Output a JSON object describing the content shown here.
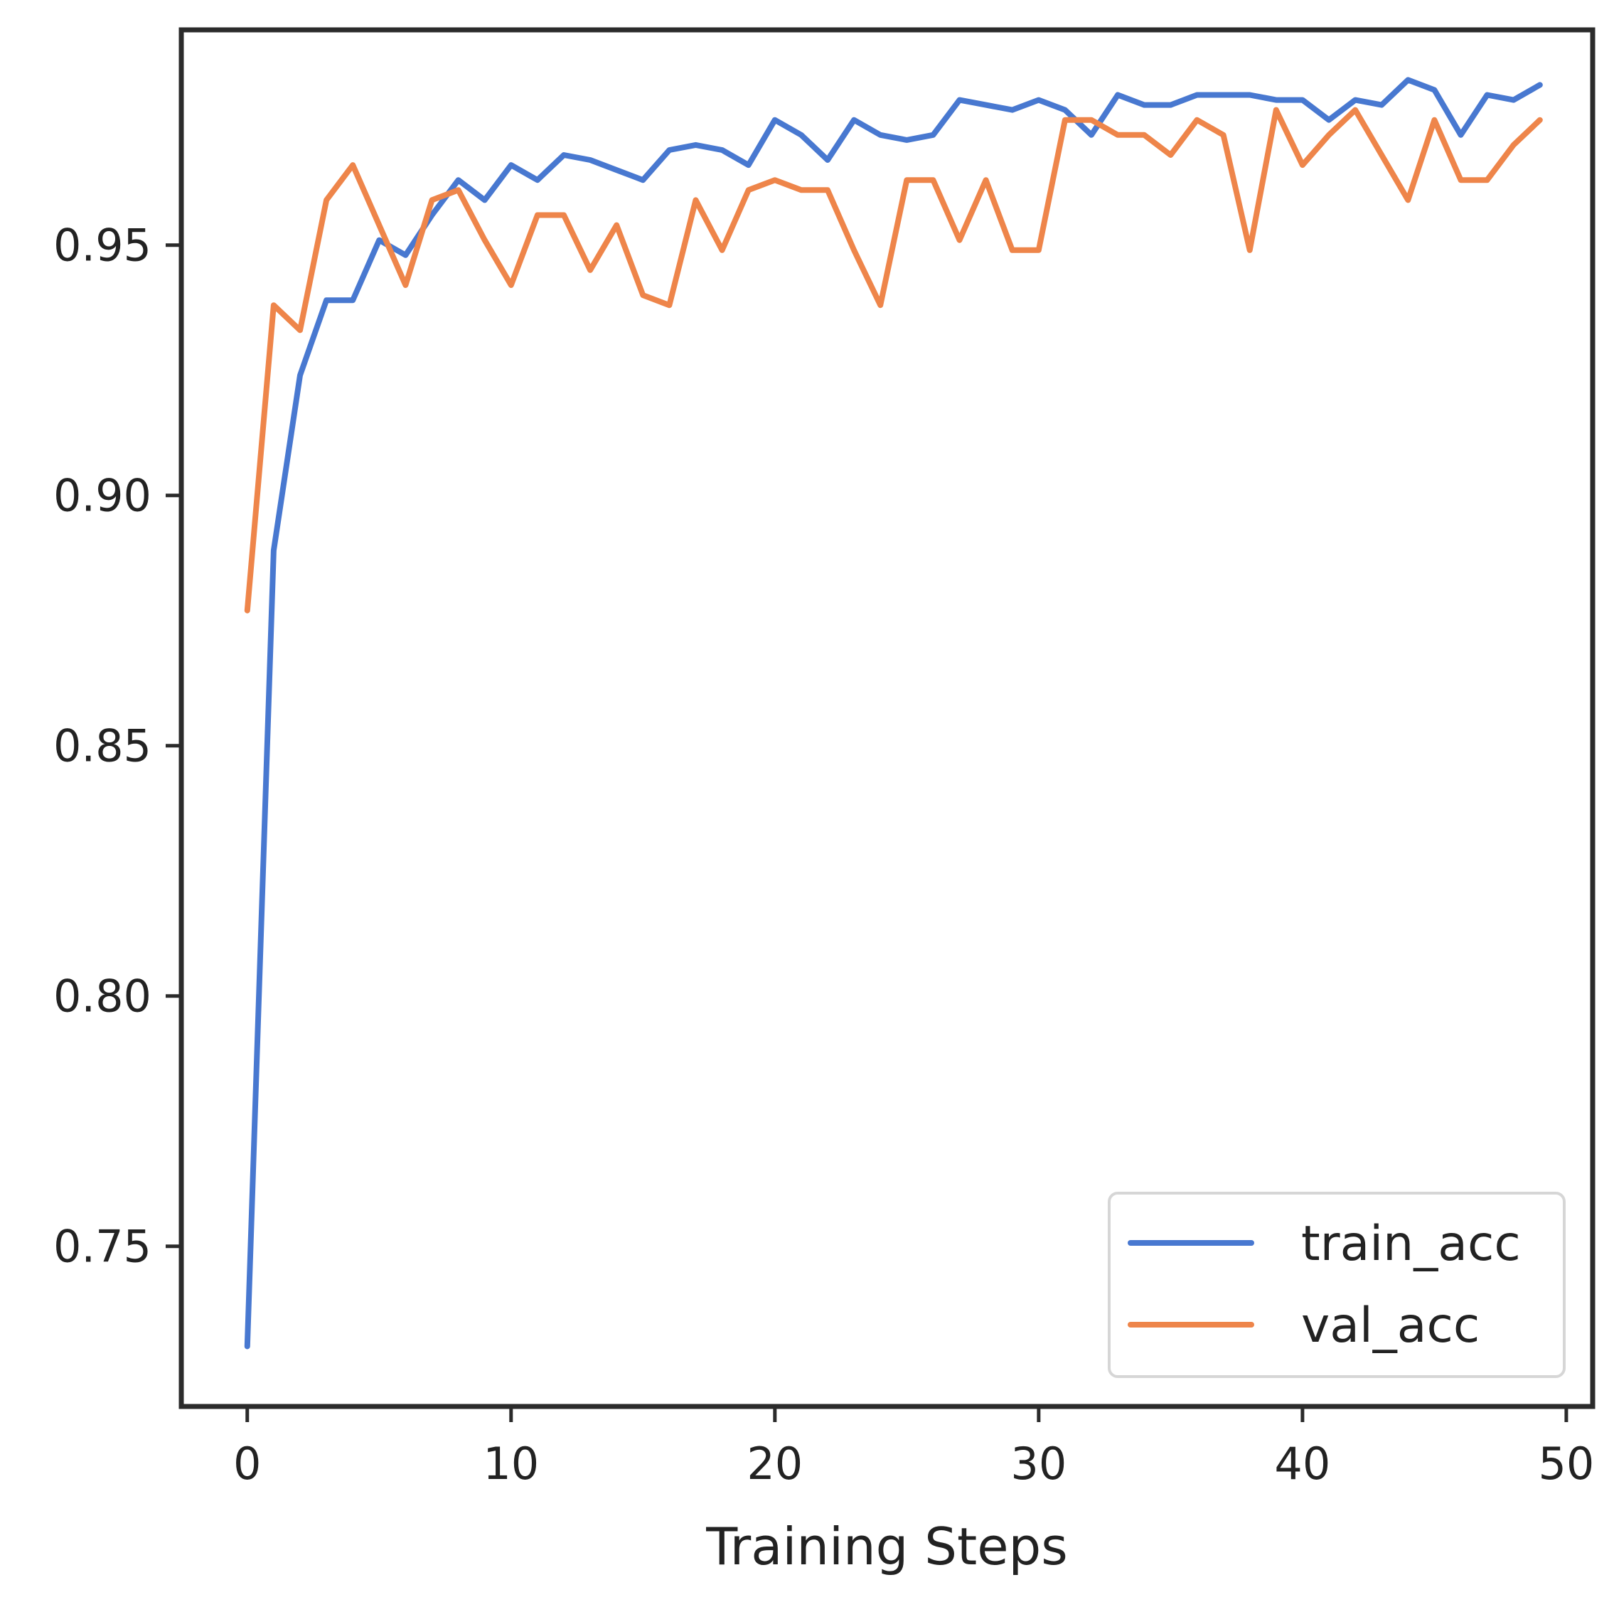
{
  "chart_data": {
    "type": "line",
    "title": "",
    "xlabel": "Training Steps",
    "ylabel": "",
    "xlim": [
      -2.5,
      51
    ],
    "ylim": [
      0.718,
      0.993
    ],
    "xticks": [
      0,
      10,
      20,
      30,
      40,
      50
    ],
    "xtick_labels": [
      "0",
      "10",
      "20",
      "30",
      "40",
      "50"
    ],
    "yticks": [
      0.75,
      0.8,
      0.85,
      0.9,
      0.95
    ],
    "ytick_labels": [
      "0.75",
      "0.80",
      "0.85",
      "0.90",
      "0.95"
    ],
    "grid": false,
    "legend_position": "lower-right",
    "x": [
      0,
      1,
      2,
      3,
      4,
      5,
      6,
      7,
      8,
      9,
      10,
      11,
      12,
      13,
      14,
      15,
      16,
      17,
      18,
      19,
      20,
      21,
      22,
      23,
      24,
      25,
      26,
      27,
      28,
      29,
      30,
      31,
      32,
      33,
      34,
      35,
      36,
      37,
      38,
      39,
      40,
      41,
      42,
      43,
      44,
      45,
      46,
      47,
      48,
      49
    ],
    "series": [
      {
        "name": "train_acc",
        "color": "#4878d0",
        "values": [
          0.73,
          0.889,
          0.924,
          0.939,
          0.939,
          0.951,
          0.948,
          0.956,
          0.963,
          0.959,
          0.966,
          0.963,
          0.968,
          0.967,
          0.965,
          0.963,
          0.969,
          0.97,
          0.969,
          0.966,
          0.975,
          0.972,
          0.967,
          0.975,
          0.972,
          0.971,
          0.972,
          0.979,
          0.978,
          0.977,
          0.979,
          0.977,
          0.972,
          0.98,
          0.978,
          0.978,
          0.98,
          0.98,
          0.98,
          0.979,
          0.979,
          0.975,
          0.979,
          0.978,
          0.983,
          0.981,
          0.972,
          0.98,
          0.979,
          0.982
        ]
      },
      {
        "name": "val_acc",
        "color": "#ee854a",
        "values": [
          0.877,
          0.938,
          0.933,
          0.959,
          0.966,
          0.954,
          0.942,
          0.959,
          0.961,
          0.951,
          0.942,
          0.956,
          0.956,
          0.945,
          0.954,
          0.94,
          0.938,
          0.959,
          0.949,
          0.961,
          0.963,
          0.961,
          0.961,
          0.949,
          0.938,
          0.963,
          0.963,
          0.951,
          0.963,
          0.949,
          0.949,
          0.975,
          0.975,
          0.972,
          0.972,
          0.968,
          0.975,
          0.972,
          0.949,
          0.977,
          0.966,
          0.972,
          0.977,
          0.968,
          0.959,
          0.975,
          0.963,
          0.963,
          0.97,
          0.975
        ]
      }
    ]
  }
}
